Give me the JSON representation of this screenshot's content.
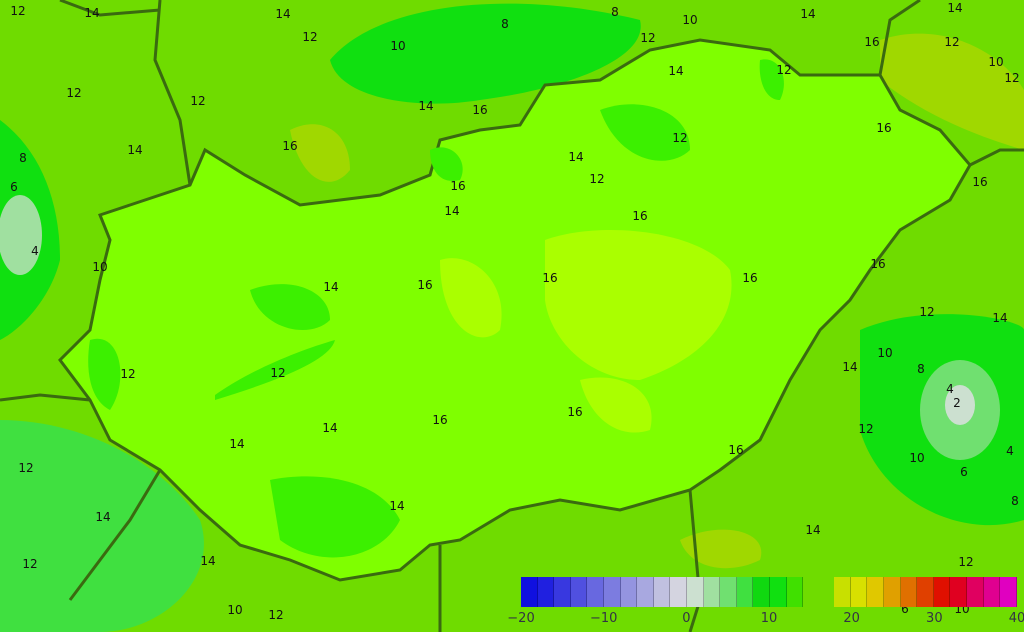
{
  "colorbar": {
    "min": -20,
    "max": 40,
    "step": 2,
    "tick_labels": [
      "−20",
      "−10",
      "0",
      "10",
      "20",
      "30",
      "40"
    ],
    "colors": [
      "#1010e0",
      "#2020e0",
      "#3838e0",
      "#5050e0",
      "#6868e0",
      "#7c7ce0",
      "#9494e0",
      "#a8a8e0",
      "#c0c0e0",
      "#d4d4e0",
      "#cce0d0",
      "#a0e0a0",
      "#70e070",
      "#40e040",
      "#10d810",
      "#10e010",
      "#40e000",
      null,
      null,
      "#c8e000",
      "#d8e000",
      "#e0c800",
      "#e0a000",
      "#e07000",
      "#e04000",
      "#e01000",
      "#e00020",
      "#e00060",
      "#e00090",
      "#e000c0"
    ]
  },
  "map_colors": {
    "background": "#6fdc00",
    "region_14_16": "#7fff00",
    "region_16_18": "#aaff00",
    "region_12_14": "#3cf000",
    "region_10_12": "#10e010",
    "border": "#3a6a10"
  },
  "contour_labels": [
    "12",
    "14",
    "14",
    "12",
    "8",
    "10",
    "8",
    "10",
    "14",
    "12",
    "16",
    "14",
    "12",
    "10",
    "12",
    "12",
    "14",
    "12",
    "12",
    "16",
    "8",
    "6",
    "4",
    "14",
    "16",
    "14",
    "12",
    "12",
    "16",
    "14",
    "10",
    "16",
    "16",
    "16",
    "16",
    "16",
    "14",
    "14",
    "12",
    "12",
    "14",
    "10",
    "8",
    "4",
    "2",
    "14",
    "16",
    "12",
    "10",
    "6",
    "4",
    "8",
    "14",
    "16",
    "12",
    "14",
    "16",
    "16",
    "14",
    "16",
    "12",
    "14",
    "14",
    "12",
    "12",
    "10",
    "12",
    "14",
    "10",
    "6"
  ]
}
